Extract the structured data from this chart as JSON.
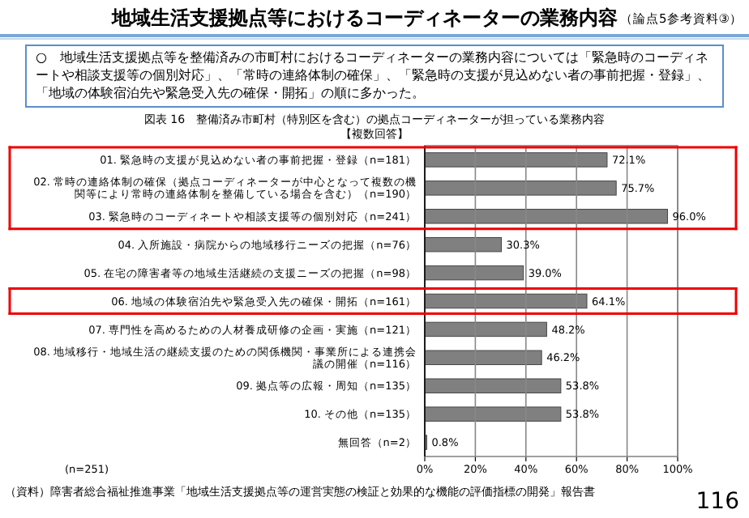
{
  "chart_data": {
    "type": "bar",
    "orientation": "horizontal",
    "title": "地域生活支援拠点等におけるコーディネーターの業務内容",
    "subtitle": "図表 16　整備済み市町村（特別区を含む）の拠点コーディネーターが担っている業務内容",
    "annotations": [
      "（論点5参考資料③）",
      "○　地域生活支援拠点等を整備済みの市町村におけるコーディネーターの業務内容については「緊急時のコーディネートや相談支援等の個別対応」、「常時の連絡体制の確保」、「緊急時の支援が見込めない者の事前把握・登録」、「地域の体験宿泊先や緊急受入先の確保・開拓」の順に多かった。",
      "【複数回答】",
      "(n=251)",
      "（資料）障害者総合福祉推進事業「地域生活支援拠点等の運営実態の検証と効果的な機能の評価指標の開発」報告書",
      "116"
    ],
    "categories": [
      "01. 緊急時の支援が見込めない者の事前把握・登録（n=181）",
      "02. 常時の連絡体制の確保（拠点コーディネーターが中心となって複数の機関等により常時の連絡体制を整備している場合を含む）（n=190）",
      "03. 緊急時のコーディネートや相談支援等の個別対応（n=241）",
      "04. 入所施設・病院からの地域移行ニーズの把握（n=76）",
      "05. 在宅の障害者等の地域生活継続の支援ニーズの把握（n=98）",
      "06. 地域の体験宿泊先や緊急受入先の確保・開拓（n=161）",
      "07. 専門性を高めるための人材養成研修の企画・実施（n=121）",
      "08. 地域移行・地域生活の継続支援のための関係機関・事業所による連携会議の開催（n=116）",
      "09. 拠点等の広報・周知（n=135）",
      "10. その他（n=135）",
      "無回答（n=2）"
    ],
    "values": [
      72.1,
      75.7,
      96.0,
      30.3,
      39.0,
      64.1,
      48.2,
      46.2,
      53.8,
      53.8,
      0.8
    ],
    "value_labels": [
      "72.1%",
      "75.7%",
      "96.0%",
      "30.3%",
      "39.0%",
      "64.1%",
      "48.2%",
      "46.2%",
      "53.8%",
      "53.8%",
      "0.8%"
    ],
    "color": "#808080",
    "xlim": [
      0,
      100
    ],
    "xticks": [
      {
        "value": 0,
        "label": "0%"
      },
      {
        "value": 20,
        "label": "20%"
      },
      {
        "value": 40,
        "label": "40%"
      },
      {
        "value": 60,
        "label": "60%"
      },
      {
        "value": 80,
        "label": "80%"
      },
      {
        "value": 100,
        "label": "100%"
      }
    ],
    "grid": "x"
  }
}
